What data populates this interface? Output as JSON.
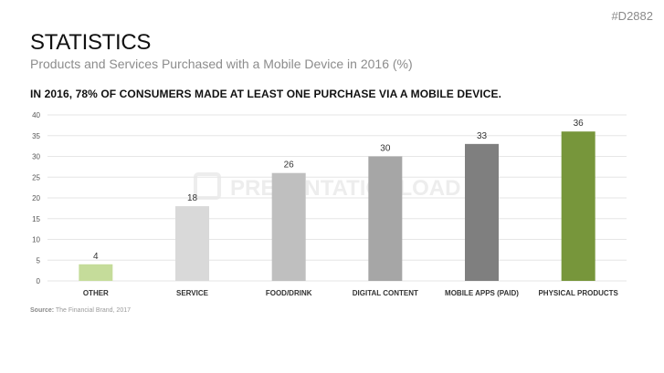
{
  "slide_id": "#D2882",
  "title": "STATISTICS",
  "subtitle": "Products and Services Purchased with a Mobile Device in 2016 (%)",
  "headline": "IN 2016, 78% OF CONSUMERS MADE AT LEAST ONE PURCHASE VIA A MOBILE DEVICE.",
  "source": {
    "label": "Source:",
    "text": "The Financial Brand, 2017"
  },
  "watermark": "PRESENTATIONLOAD",
  "chart_data": {
    "type": "bar",
    "categories": [
      "OTHER",
      "SERVICE",
      "FOOD/DRINK",
      "DIGITAL CONTENT",
      "MOBILE APPS (PAID)",
      "PHYSICAL PRODUCTS"
    ],
    "values": [
      4,
      18,
      26,
      30,
      33,
      36
    ],
    "colors": [
      "#c5dc9a",
      "#d9d9d9",
      "#bfbfbf",
      "#a6a6a6",
      "#7f7f7f",
      "#77963b"
    ],
    "ylim": [
      0,
      40
    ],
    "yticks": [
      0,
      5,
      10,
      15,
      20,
      25,
      30,
      35,
      40
    ],
    "grid": true,
    "xlabel": "",
    "ylabel": ""
  }
}
